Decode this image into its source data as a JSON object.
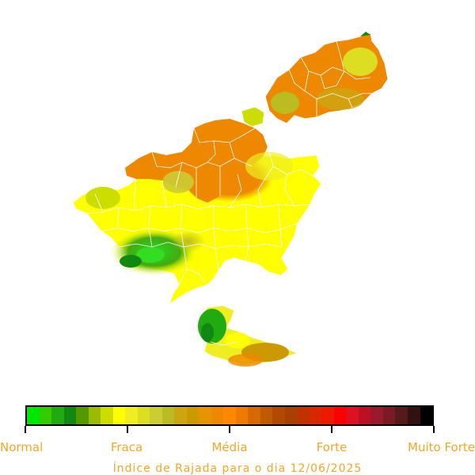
{
  "map": {
    "legend": {
      "labels": [
        "Normal",
        "Fraca",
        "Média",
        "Forte",
        "Muito Forte"
      ],
      "colors": [
        "#00e600",
        "#33cc00",
        "#22aa11",
        "#118811",
        "#559900",
        "#99bb00",
        "#ccdd00",
        "#ffff00",
        "#eeee22",
        "#dddd22",
        "#cccc33",
        "#bbbb22",
        "#cca611",
        "#cc9900",
        "#e69500",
        "#ee8800",
        "#ff8800",
        "#f07a00",
        "#d66a00",
        "#c05a00",
        "#b04a00",
        "#a84000",
        "#c03300",
        "#d82800",
        "#ee1a00",
        "#ff0000",
        "#dd1122",
        "#bb1122",
        "#991a2a",
        "#7a1a22",
        "#551a1a",
        "#331111",
        "#000000"
      ]
    },
    "caption": "Índice de Rajada para o dia 12/06/2025",
    "region_colors": {
      "green": "#22aa11",
      "yellow": "#ffff00",
      "orange": "#ee8800",
      "olive": "#cccc33"
    }
  }
}
